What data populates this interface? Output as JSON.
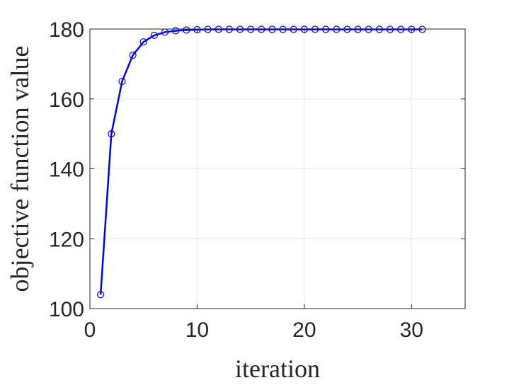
{
  "chart_data": {
    "type": "line",
    "title": "",
    "xlabel": "iteration",
    "ylabel": "objective function value",
    "xlim": [
      0,
      35
    ],
    "ylim": [
      100,
      180
    ],
    "xticks": [
      0,
      10,
      20,
      30
    ],
    "yticks": [
      100,
      120,
      140,
      160,
      180
    ],
    "grid": true,
    "legend": "none",
    "series": [
      {
        "color": "#0000ff",
        "marker": "circle",
        "x": [
          1,
          2,
          3,
          4,
          5,
          6,
          7,
          8,
          9,
          10,
          11,
          12,
          13,
          14,
          15,
          16,
          17,
          18,
          19,
          20,
          21,
          22,
          23,
          24,
          25,
          26,
          27,
          28,
          29,
          30,
          31
        ],
        "y": [
          104,
          150,
          165,
          172.5,
          176.3,
          178.2,
          179.1,
          179.5,
          179.7,
          179.8,
          179.9,
          179.9,
          179.9,
          179.9,
          179.9,
          179.9,
          179.9,
          179.9,
          179.9,
          179.9,
          179.9,
          179.9,
          179.9,
          179.9,
          179.9,
          179.9,
          179.9,
          179.9,
          179.9,
          179.9,
          179.9
        ]
      }
    ]
  }
}
